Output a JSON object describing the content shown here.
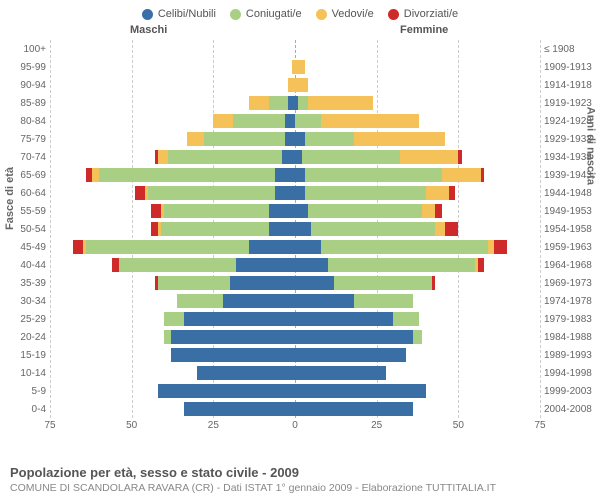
{
  "legend": [
    {
      "label": "Celibi/Nubili",
      "color": "#3a6fa6"
    },
    {
      "label": "Coniugati/e",
      "color": "#a9cf85"
    },
    {
      "label": "Vedovi/e",
      "color": "#f5c159"
    },
    {
      "label": "Divorziati/e",
      "color": "#cf2a2a"
    }
  ],
  "headers": {
    "male": "Maschi",
    "female": "Femmine"
  },
  "axis_labels": {
    "left": "Fasce di età",
    "right": "Anni di nascita"
  },
  "colors": {
    "grid": "#cccccc",
    "center": "#aaaaaa",
    "text": "#666666",
    "bg": "#ffffff"
  },
  "xaxis": {
    "max": 75,
    "ticks": [
      75,
      50,
      25,
      0,
      25,
      50,
      75
    ]
  },
  "rows": [
    {
      "age": "100+",
      "birth": "≤ 1908",
      "m": [
        0,
        0,
        0,
        0
      ],
      "f": [
        0,
        0,
        0,
        0
      ]
    },
    {
      "age": "95-99",
      "birth": "1909-1913",
      "m": [
        0,
        0,
        1,
        0
      ],
      "f": [
        0,
        0,
        3,
        0
      ]
    },
    {
      "age": "90-94",
      "birth": "1914-1918",
      "m": [
        0,
        0,
        2,
        0
      ],
      "f": [
        0,
        0,
        4,
        0
      ]
    },
    {
      "age": "85-89",
      "birth": "1919-1923",
      "m": [
        2,
        6,
        6,
        0
      ],
      "f": [
        1,
        3,
        20,
        0
      ]
    },
    {
      "age": "80-84",
      "birth": "1924-1928",
      "m": [
        3,
        16,
        6,
        0
      ],
      "f": [
        0,
        8,
        30,
        0
      ]
    },
    {
      "age": "75-79",
      "birth": "1929-1933",
      "m": [
        3,
        25,
        5,
        0
      ],
      "f": [
        3,
        15,
        28,
        0
      ]
    },
    {
      "age": "70-74",
      "birth": "1934-1938",
      "m": [
        4,
        35,
        3,
        1
      ],
      "f": [
        2,
        30,
        18,
        1
      ]
    },
    {
      "age": "65-69",
      "birth": "1939-1943",
      "m": [
        6,
        54,
        2,
        2
      ],
      "f": [
        3,
        42,
        12,
        1
      ]
    },
    {
      "age": "60-64",
      "birth": "1944-1948",
      "m": [
        6,
        39,
        1,
        3
      ],
      "f": [
        3,
        37,
        7,
        2
      ]
    },
    {
      "age": "55-59",
      "birth": "1949-1953",
      "m": [
        8,
        32,
        1,
        3
      ],
      "f": [
        4,
        35,
        4,
        2
      ]
    },
    {
      "age": "50-54",
      "birth": "1954-1958",
      "m": [
        8,
        33,
        1,
        2
      ],
      "f": [
        5,
        38,
        3,
        4
      ]
    },
    {
      "age": "45-49",
      "birth": "1959-1963",
      "m": [
        14,
        50,
        1,
        3
      ],
      "f": [
        8,
        51,
        2,
        4
      ]
    },
    {
      "age": "40-44",
      "birth": "1964-1968",
      "m": [
        18,
        36,
        0,
        2
      ],
      "f": [
        10,
        45,
        1,
        2
      ]
    },
    {
      "age": "35-39",
      "birth": "1969-1973",
      "m": [
        20,
        22,
        0,
        1
      ],
      "f": [
        12,
        30,
        0,
        1
      ]
    },
    {
      "age": "30-34",
      "birth": "1974-1978",
      "m": [
        22,
        14,
        0,
        0
      ],
      "f": [
        18,
        18,
        0,
        0
      ]
    },
    {
      "age": "25-29",
      "birth": "1979-1983",
      "m": [
        34,
        6,
        0,
        0
      ],
      "f": [
        30,
        8,
        0,
        0
      ]
    },
    {
      "age": "20-24",
      "birth": "1984-1988",
      "m": [
        38,
        2,
        0,
        0
      ],
      "f": [
        36,
        3,
        0,
        0
      ]
    },
    {
      "age": "15-19",
      "birth": "1989-1993",
      "m": [
        38,
        0,
        0,
        0
      ],
      "f": [
        34,
        0,
        0,
        0
      ]
    },
    {
      "age": "10-14",
      "birth": "1994-1998",
      "m": [
        30,
        0,
        0,
        0
      ],
      "f": [
        28,
        0,
        0,
        0
      ]
    },
    {
      "age": "5-9",
      "birth": "1999-2003",
      "m": [
        42,
        0,
        0,
        0
      ],
      "f": [
        40,
        0,
        0,
        0
      ]
    },
    {
      "age": "0-4",
      "birth": "2004-2008",
      "m": [
        34,
        0,
        0,
        0
      ],
      "f": [
        36,
        0,
        0,
        0
      ]
    }
  ],
  "footer": {
    "title": "Popolazione per età, sesso e stato civile - 2009",
    "sub": "COMUNE DI SCANDOLARA RAVARA (CR) - Dati ISTAT 1° gennaio 2009 - Elaborazione TUTTITALIA.IT"
  }
}
